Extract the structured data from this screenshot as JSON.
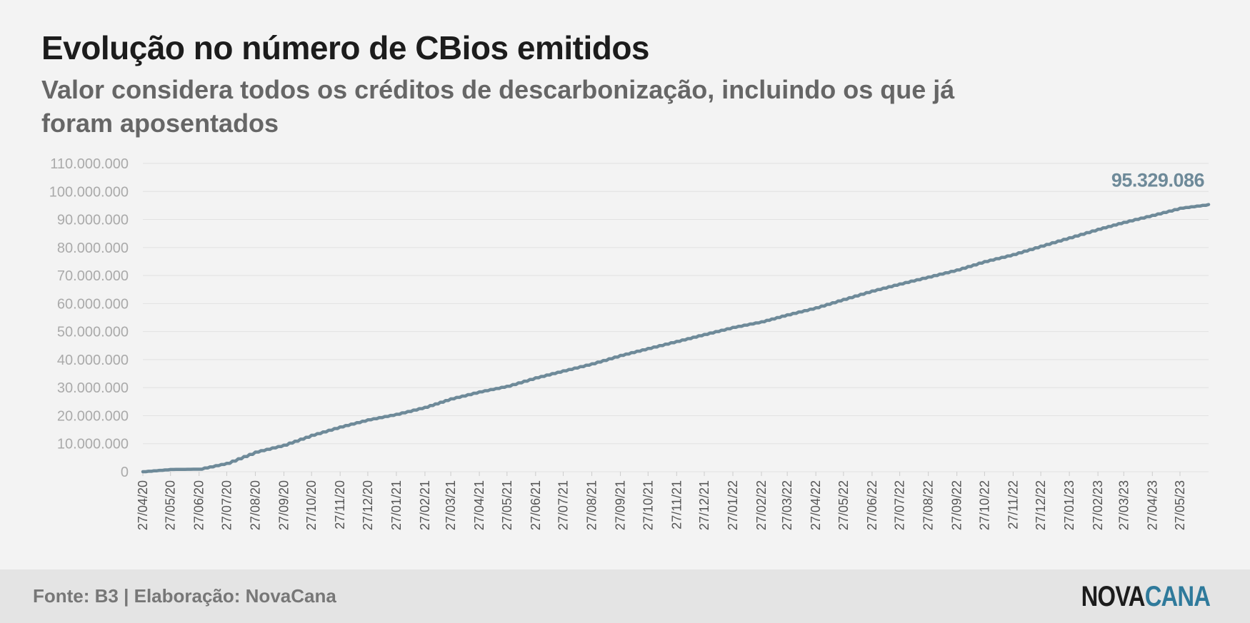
{
  "header": {
    "title": "Evolução no número de CBios emitidos",
    "subtitle": "Valor considera todos os créditos de descarbonização, incluindo os que já foram aposentados"
  },
  "footer": {
    "source": "Fonte: B3 | Elaboração: NovaCana",
    "logo_part1": "NOVA",
    "logo_part2": "CANA"
  },
  "colors": {
    "line": "#6e8a99",
    "grid": "#e2e2e2",
    "logo_accent": "#2f7a9b"
  },
  "chart_data": {
    "type": "line",
    "title": "Evolução no número de CBios emitidos",
    "subtitle": "Valor considera todos os créditos de descarbonização, incluindo os que já foram aposentados",
    "xlabel": "",
    "ylabel": "",
    "ylim": [
      0,
      110000000
    ],
    "yticks": [
      "0",
      "10.000.000",
      "20.000.000",
      "30.000.000",
      "40.000.000",
      "50.000.000",
      "60.000.000",
      "70.000.000",
      "80.000.000",
      "90.000.000",
      "100.000.000",
      "110.000.000"
    ],
    "ytick_values": [
      0,
      10000000,
      20000000,
      30000000,
      40000000,
      50000000,
      60000000,
      70000000,
      80000000,
      90000000,
      100000000,
      110000000
    ],
    "xticks": [
      "27/04/20",
      "27/05/20",
      "27/06/20",
      "27/07/20",
      "27/08/20",
      "27/09/20",
      "27/10/20",
      "27/11/20",
      "27/12/20",
      "27/01/21",
      "27/02/21",
      "27/03/21",
      "27/04/21",
      "27/05/21",
      "27/06/21",
      "27/07/21",
      "27/08/21",
      "27/09/21",
      "27/10/21",
      "27/11/21",
      "27/12/21",
      "27/01/22",
      "27/02/22",
      "27/03/22",
      "27/04/22",
      "27/05/22",
      "27/06/22",
      "27/07/22",
      "27/08/22",
      "27/09/22",
      "27/10/22",
      "27/11/22",
      "27/12/22",
      "27/01/23",
      "27/02/23",
      "27/03/23",
      "27/04/23",
      "27/05/23"
    ],
    "xrange": [
      "27/04/20",
      "27/06/23"
    ],
    "grid": true,
    "end_label": "95.329.086",
    "series": [
      {
        "x": [
          "27/04/20",
          "27/05/20",
          "27/06/20",
          "27/07/20",
          "27/08/20",
          "27/09/20",
          "27/10/20",
          "27/11/20",
          "27/12/20",
          "27/01/21",
          "27/02/21",
          "27/03/21",
          "27/04/21",
          "27/05/21",
          "27/06/21",
          "27/07/21",
          "27/08/21",
          "27/09/21",
          "27/10/21",
          "27/11/21",
          "27/12/21",
          "27/01/22",
          "27/02/22",
          "27/03/22",
          "27/04/22",
          "27/05/22",
          "27/06/22",
          "27/07/22",
          "27/08/22",
          "27/09/22",
          "27/10/22",
          "27/11/22",
          "27/12/22",
          "27/01/23",
          "27/02/23",
          "27/03/23",
          "27/04/23",
          "27/05/23",
          "27/06/23"
        ],
        "values": [
          0,
          800000,
          900000,
          3000000,
          7000000,
          9500000,
          13000000,
          16000000,
          18500000,
          20500000,
          23000000,
          26000000,
          28500000,
          30500000,
          33500000,
          36000000,
          38500000,
          41500000,
          44000000,
          46500000,
          49000000,
          51500000,
          53500000,
          56000000,
          58500000,
          61500000,
          64500000,
          67000000,
          69500000,
          72000000,
          75000000,
          77500000,
          80500000,
          83500000,
          86500000,
          89000000,
          91500000,
          94000000,
          95329086
        ]
      }
    ]
  }
}
